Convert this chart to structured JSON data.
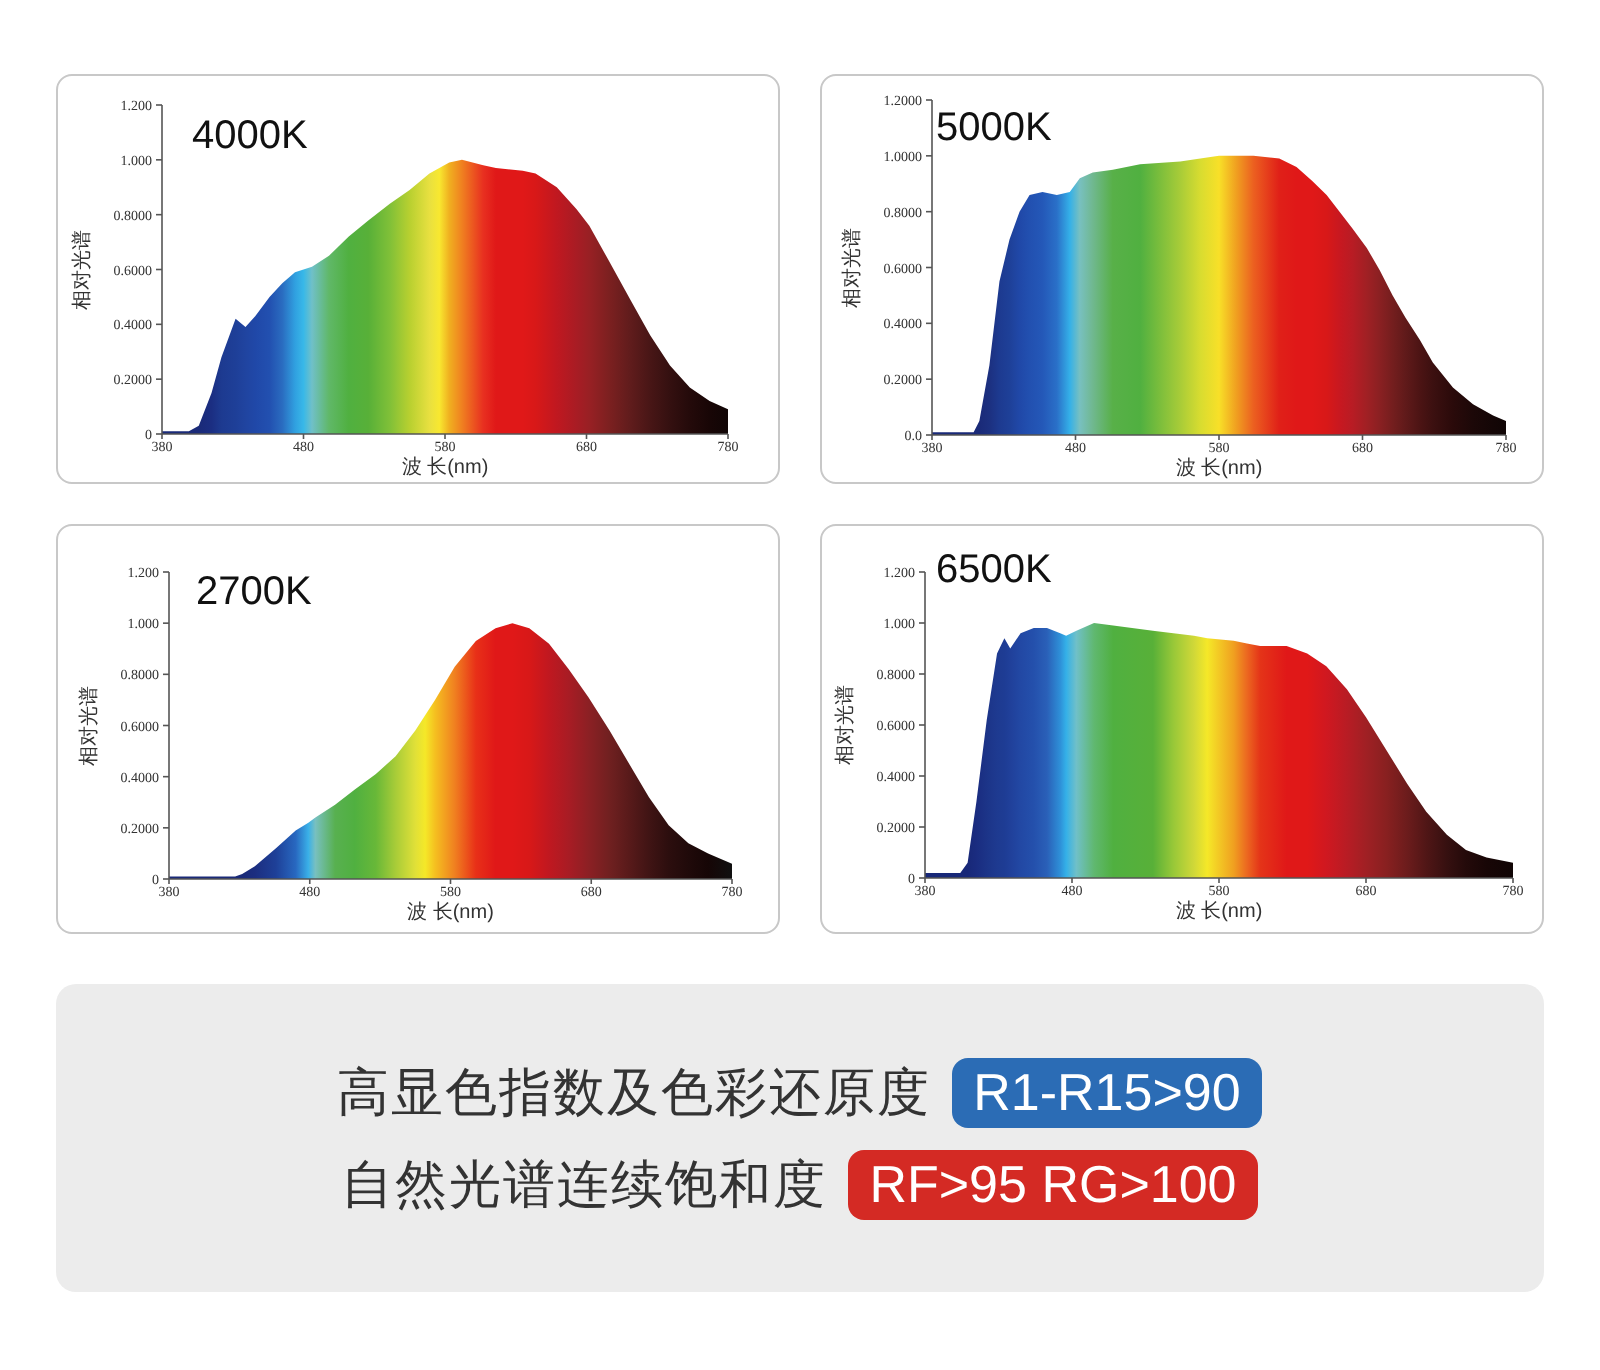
{
  "chart_data": [
    {
      "type": "area",
      "title": "4000K",
      "xlabel": "波 长(nm)",
      "ylabel": "相对光谱",
      "x": [
        380,
        399,
        406,
        415,
        422,
        432,
        439,
        446,
        456,
        465,
        474,
        480,
        486,
        498,
        512,
        526,
        541,
        555,
        569,
        576,
        583,
        592,
        607,
        616,
        635,
        644,
        659,
        673,
        682,
        696,
        711,
        725,
        739,
        753,
        767,
        780
      ],
      "values": [
        0.01,
        0.01,
        0.03,
        0.15,
        0.28,
        0.42,
        0.39,
        0.43,
        0.5,
        0.55,
        0.59,
        0.6,
        0.61,
        0.65,
        0.72,
        0.78,
        0.84,
        0.89,
        0.95,
        0.97,
        0.99,
        1.0,
        0.98,
        0.97,
        0.96,
        0.95,
        0.9,
        0.82,
        0.76,
        0.63,
        0.49,
        0.36,
        0.25,
        0.17,
        0.12,
        0.09
      ],
      "colors": [
        "#1a2a78",
        "#1a2a78",
        "#1a2a78",
        "#1b2e82",
        "#1d3a90",
        "#1e3f98",
        "#2044a0",
        "#2048a8",
        "#2250b0",
        "#2a6cc0",
        "#30a0e0",
        "#38b8e8",
        "#70c0c8",
        "#60b868",
        "#50b040",
        "#58b038",
        "#80c038",
        "#b8d030",
        "#e8e040",
        "#f8e830",
        "#f0b020",
        "#f08020",
        "#e83020",
        "#e01818",
        "#e01818",
        "#d81818",
        "#c01820",
        "#a81c24",
        "#982024",
        "#7c2020",
        "#601c1c",
        "#481616",
        "#341010",
        "#240a0a",
        "#180606",
        "#100505"
      ],
      "xlim": [
        380,
        780
      ],
      "ylim": [
        0,
        1.2
      ],
      "xticks": [
        380,
        480,
        580,
        680,
        780
      ],
      "yticks": [
        {
          "value": 0,
          "label": "0"
        },
        {
          "value": 0.2,
          "label": "0.2000"
        },
        {
          "value": 0.4,
          "label": "0.4000"
        },
        {
          "value": 0.6,
          "label": "0.6000"
        },
        {
          "value": 0.8,
          "label": "0.8000"
        },
        {
          "value": 1,
          "label": "1.000"
        },
        {
          "value": 1.2,
          "label": "1.200"
        }
      ]
    },
    {
      "type": "area",
      "title": "5000K",
      "xlabel": "波 长(nm)",
      "ylabel": "相对光谱",
      "x": [
        380,
        409,
        413,
        420,
        427,
        434,
        441,
        448,
        457,
        467,
        476,
        483,
        492,
        506,
        525,
        553,
        567,
        580,
        592,
        604,
        622,
        634,
        645,
        655,
        664,
        673,
        683,
        692,
        701,
        710,
        720,
        729,
        743,
        757,
        771,
        780
      ],
      "values": [
        0.01,
        0.01,
        0.05,
        0.25,
        0.55,
        0.7,
        0.8,
        0.86,
        0.87,
        0.86,
        0.87,
        0.92,
        0.94,
        0.95,
        0.97,
        0.98,
        0.99,
        1.0,
        1.0,
        1.0,
        0.99,
        0.96,
        0.91,
        0.86,
        0.8,
        0.74,
        0.67,
        0.59,
        0.5,
        0.42,
        0.34,
        0.26,
        0.17,
        0.11,
        0.07,
        0.05
      ],
      "colors": [
        "#1a2a78",
        "#1a2a78",
        "#1a2a78",
        "#1c3080",
        "#1d3a90",
        "#1e4098",
        "#2048a8",
        "#2250b0",
        "#2458b8",
        "#2a70c8",
        "#34b0e8",
        "#78c0c0",
        "#70b890",
        "#58b048",
        "#50b040",
        "#a8cc38",
        "#d8dc30",
        "#f8e028",
        "#f0a020",
        "#ec6020",
        "#e02018",
        "#e01818",
        "#e01818",
        "#d81818",
        "#c81820",
        "#b81c24",
        "#a02024",
        "#8a2022",
        "#741e1e",
        "#601a1a",
        "#4c1414",
        "#3c1010",
        "#2a0a0a",
        "#1c0808",
        "#140606",
        "#100505"
      ],
      "xlim": [
        380,
        780
      ],
      "ylim": [
        0,
        1.2
      ],
      "xticks": [
        380,
        480,
        580,
        680,
        780
      ],
      "yticks": [
        {
          "value": 0,
          "label": "0.0"
        },
        {
          "value": 0.2,
          "label": "0.2000"
        },
        {
          "value": 0.4,
          "label": "0.4000"
        },
        {
          "value": 0.6,
          "label": "0.6000"
        },
        {
          "value": 0.8,
          "label": "0.8000"
        },
        {
          "value": 1,
          "label": "1.0000"
        },
        {
          "value": 1.2,
          "label": "1.2000"
        }
      ]
    },
    {
      "type": "area",
      "title": "2700K",
      "xlabel": "波 长(nm)",
      "ylabel": "相对光谱",
      "x": [
        380,
        427,
        432,
        441,
        456,
        470,
        479,
        484,
        498,
        512,
        527,
        541,
        555,
        562,
        569,
        583,
        598,
        612,
        624,
        636,
        650,
        664,
        678,
        693,
        707,
        721,
        735,
        749,
        763,
        780
      ],
      "values": [
        0.01,
        0.01,
        0.02,
        0.05,
        0.12,
        0.19,
        0.22,
        0.24,
        0.29,
        0.35,
        0.41,
        0.48,
        0.58,
        0.64,
        0.7,
        0.83,
        0.93,
        0.98,
        1.0,
        0.98,
        0.92,
        0.82,
        0.71,
        0.58,
        0.45,
        0.32,
        0.21,
        0.14,
        0.1,
        0.06
      ],
      "colors": [
        "#1a2a78",
        "#1a2a78",
        "#1a2a78",
        "#1c2e80",
        "#1e4098",
        "#2868c0",
        "#3ab0e8",
        "#78c0c0",
        "#58b050",
        "#50b040",
        "#68b838",
        "#a8cc38",
        "#e0e038",
        "#f5e828",
        "#f5c020",
        "#f08020",
        "#e83018",
        "#e01818",
        "#e01818",
        "#d81818",
        "#c01820",
        "#a81c24",
        "#8c2024",
        "#702020",
        "#581a1a",
        "#401414",
        "#2c0e0e",
        "#200a0a",
        "#160606",
        "#101010"
      ],
      "xlim": [
        380,
        780
      ],
      "ylim": [
        0,
        1.2
      ],
      "xticks": [
        380,
        480,
        580,
        680,
        780
      ],
      "yticks": [
        {
          "value": 0,
          "label": "0"
        },
        {
          "value": 0.2,
          "label": "0.2000"
        },
        {
          "value": 0.4,
          "label": "0.4000"
        },
        {
          "value": 0.6,
          "label": "0.6000"
        },
        {
          "value": 0.8,
          "label": "0.8000"
        },
        {
          "value": 1,
          "label": "1.000"
        },
        {
          "value": 1.2,
          "label": "1.200"
        }
      ]
    },
    {
      "type": "area",
      "title": "6500K",
      "xlabel": "波 长(nm)",
      "ylabel": "相对光谱",
      "x": [
        380,
        404,
        409,
        415,
        422,
        429,
        434,
        438,
        445,
        454,
        463,
        472,
        476,
        483,
        495,
        508,
        535,
        549,
        563,
        572,
        590,
        599,
        608,
        626,
        640,
        653,
        667,
        680,
        694,
        708,
        721,
        735,
        748,
        762,
        780
      ],
      "values": [
        0.02,
        0.02,
        0.06,
        0.3,
        0.62,
        0.88,
        0.94,
        0.9,
        0.96,
        0.98,
        0.98,
        0.96,
        0.95,
        0.97,
        1.0,
        0.99,
        0.97,
        0.96,
        0.95,
        0.94,
        0.93,
        0.92,
        0.91,
        0.91,
        0.88,
        0.83,
        0.74,
        0.63,
        0.5,
        0.37,
        0.26,
        0.17,
        0.11,
        0.08,
        0.06
      ],
      "colors": [
        "#182878",
        "#182878",
        "#182878",
        "#1a2c80",
        "#1c3488",
        "#1e3a90",
        "#1e3c94",
        "#20409a",
        "#2248a4",
        "#2450ac",
        "#2a60b8",
        "#2e90d8",
        "#34b0e8",
        "#70c0c8",
        "#60b870",
        "#50b040",
        "#58b038",
        "#98c838",
        "#d0d838",
        "#f5e828",
        "#f0a020",
        "#ec6820",
        "#e43418",
        "#e01818",
        "#e01818",
        "#d01820",
        "#b81c24",
        "#a02024",
        "#882020",
        "#6c1c1c",
        "#501616",
        "#361010",
        "#240a0a",
        "#180606",
        "#100505"
      ],
      "xlim": [
        380,
        780
      ],
      "ylim": [
        0,
        1.2
      ],
      "xticks": [
        380,
        480,
        580,
        680,
        780
      ],
      "yticks": [
        {
          "value": 0,
          "label": "0"
        },
        {
          "value": 0.2,
          "label": "0.2000"
        },
        {
          "value": 0.4,
          "label": "0.4000"
        },
        {
          "value": 0.6,
          "label": "0.6000"
        },
        {
          "value": 0.8,
          "label": "0.8000"
        },
        {
          "value": 1,
          "label": "1.000"
        },
        {
          "value": 1.2,
          "label": "1.200"
        }
      ]
    },
    {
      "type": "other",
      "annotations": [
        "高显色指数及色彩还原度",
        "R1-R15>90",
        "自然光谱连续饱和度",
        "RF>95 RG>100"
      ]
    }
  ]
}
